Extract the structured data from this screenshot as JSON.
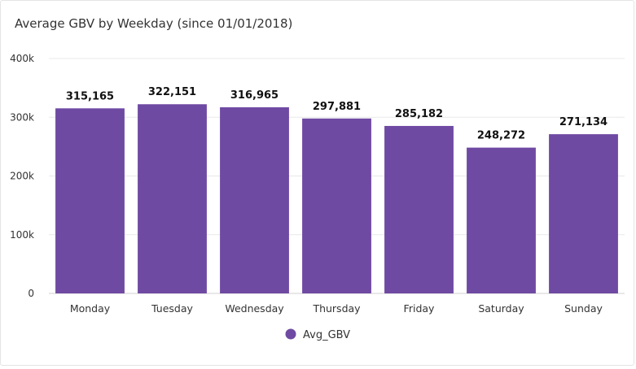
{
  "chart_data": {
    "type": "bar",
    "title": "Average GBV by Weekday (since 01/01/2018)",
    "xlabel": "",
    "ylabel": "",
    "categories": [
      "Monday",
      "Tuesday",
      "Wednesday",
      "Thursday",
      "Friday",
      "Saturday",
      "Sunday"
    ],
    "series": [
      {
        "name": "Avg_GBV",
        "values": [
          315165,
          322151,
          316965,
          297881,
          285182,
          248272,
          271134
        ],
        "labels": [
          "315,165",
          "322,151",
          "316,965",
          "297,881",
          "285,182",
          "248,272",
          "271,134"
        ],
        "color": "#6f4aa3"
      }
    ],
    "ylim": [
      0,
      400000
    ],
    "yticks": [
      0,
      100000,
      200000,
      300000,
      400000
    ],
    "ytick_labels": [
      "0",
      "100k",
      "200k",
      "300k",
      "400k"
    ],
    "grid": true,
    "legend": "bottom-center"
  }
}
